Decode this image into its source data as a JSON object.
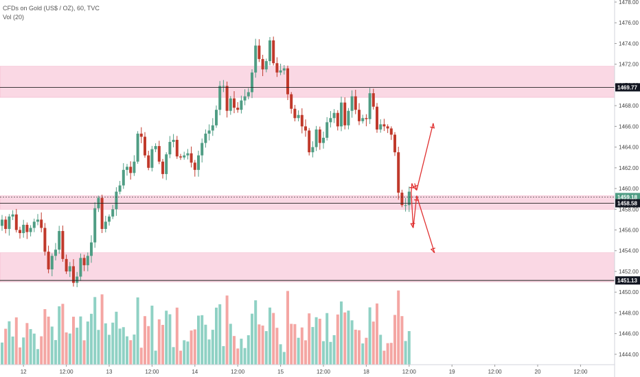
{
  "legend": {
    "symbol": "CFDs on Gold (US$ / OZ), 60, TVC",
    "volume": "Vol (20)"
  },
  "colors": {
    "bull": "#4f9d84",
    "bear": "#c0392b",
    "vol_bull": "#8fd1c4",
    "vol_bear": "#f4a6a3",
    "zone": "#f8c8d8",
    "arrow": "#e03030",
    "label_bg": "#131722"
  },
  "chart_data": {
    "type": "candlestick",
    "ylim": [
      1443,
      1478
    ],
    "y_ticks": [
      "1444.00",
      "1446.00",
      "1448.00",
      "1450.00",
      "1452.00",
      "1454.00",
      "1456.00",
      "1458.00",
      "1460.00",
      "1462.00",
      "1464.00",
      "1466.00",
      "1468.00",
      "1470.00",
      "1472.00",
      "1474.00",
      "1476.00",
      "1478.00"
    ],
    "x_ticks": [
      {
        "label": "12",
        "index": 6
      },
      {
        "label": "12:00",
        "index": 18
      },
      {
        "label": "13",
        "index": 30
      },
      {
        "label": "12:00",
        "index": 42
      },
      {
        "label": "14",
        "index": 54
      },
      {
        "label": "12:00",
        "index": 66
      },
      {
        "label": "15",
        "index": 78
      },
      {
        "label": "12:00",
        "index": 90
      },
      {
        "label": "18",
        "index": 102
      },
      {
        "label": "12:00",
        "index": 114
      },
      {
        "label": "19",
        "index": 126
      },
      {
        "label": "12:00",
        "index": 138
      },
      {
        "label": "20",
        "index": 150
      },
      {
        "label": "12:00",
        "index": 162
      }
    ],
    "price_labels": [
      "1469.77",
      "1459.18",
      "1458.58",
      "1451.13"
    ],
    "levels": [
      1469.77,
      1459.18,
      1458.58,
      1451.13
    ],
    "zones": [
      [
        1468.8,
        1471.8
      ],
      [
        1458.0,
        1459.3
      ],
      [
        1451.0,
        1453.8
      ]
    ],
    "closes": [
      1457.0,
      1456.1,
      1457.3,
      1457.5,
      1456.0,
      1455.7,
      1456.5,
      1455.8,
      1456.2,
      1456.8,
      1457.0,
      1456.2,
      1453.9,
      1452.2,
      1453.5,
      1454.1,
      1455.9,
      1453.2,
      1452.0,
      1452.5,
      1450.9,
      1451.5,
      1453.3,
      1452.6,
      1453.5,
      1454.8,
      1458.1,
      1459.1,
      1456.1,
      1456.8,
      1457.3,
      1458.0,
      1459.7,
      1460.3,
      1461.8,
      1462.1,
      1461.5,
      1462.6,
      1465.3,
      1465.0,
      1463.2,
      1462.0,
      1463.8,
      1464.1,
      1462.6,
      1461.4,
      1463.3,
      1464.5,
      1464.7,
      1463.1,
      1463.0,
      1463.2,
      1463.4,
      1462.5,
      1461.8,
      1463.2,
      1464.4,
      1465.3,
      1465.6,
      1466.1,
      1467.6,
      1469.9,
      1469.9,
      1467.5,
      1468.7,
      1467.8,
      1467.6,
      1468.5,
      1468.9,
      1469.3,
      1471.2,
      1473.8,
      1472.5,
      1471.5,
      1472.3,
      1474.3,
      1472.1,
      1471.2,
      1471.4,
      1471.6,
      1469.1,
      1467.7,
      1466.8,
      1467.1,
      1466.0,
      1465.6,
      1463.5,
      1464.0,
      1465.7,
      1464.4,
      1464.9,
      1466.4,
      1466.8,
      1467.3,
      1466.0,
      1468.3,
      1466.1,
      1467.5,
      1468.9,
      1467.6,
      1466.5,
      1466.8,
      1466.7,
      1469.2,
      1467.9,
      1465.7,
      1466.2,
      1466.0,
      1465.8,
      1465.2,
      1463.5,
      1459.6,
      1458.4,
      1458.4,
      1459.7
    ]
  }
}
